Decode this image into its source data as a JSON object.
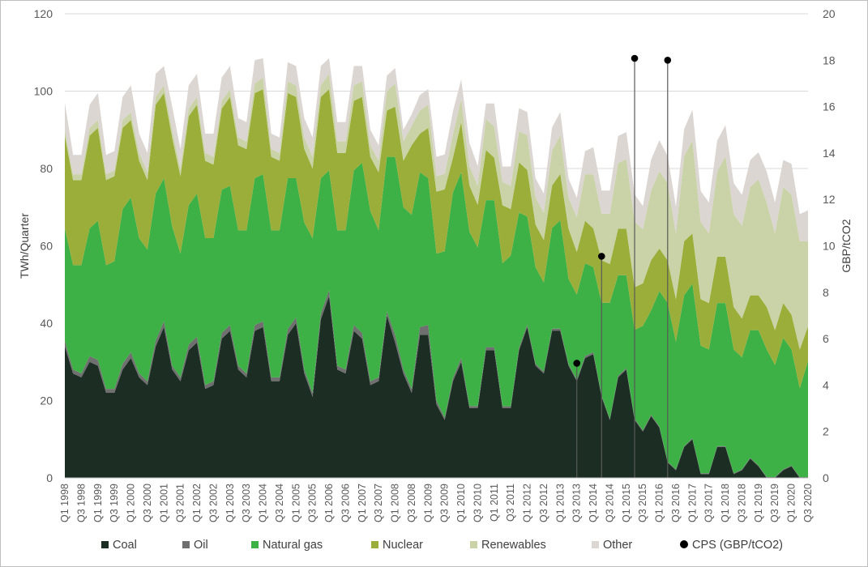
{
  "chart_data": {
    "type": "area",
    "stacked": true,
    "title": "",
    "xlabel": "",
    "ylabel": "TWh/Quarter",
    "y2label": "GBP/tCO2",
    "ylim": [
      0,
      120
    ],
    "y2lim": [
      0,
      20
    ],
    "yticks": [
      0,
      20,
      40,
      60,
      80,
      100,
      120
    ],
    "y2ticks": [
      0,
      2,
      4,
      6,
      8,
      10,
      12,
      14,
      16,
      18,
      20
    ],
    "legend_position": "bottom",
    "colors": {
      "Coal": "#1c2e24",
      "Oil": "#6f6f6f",
      "Natural gas": "#3db046",
      "Nuclear": "#9cae3a",
      "Renewables": "#c9d3a7",
      "Other": "#dcd6d2",
      "CPS (GBP/tCO2)": "#000000"
    },
    "x": [
      "Q1 1998",
      "Q2 1998",
      "Q3 1998",
      "Q4 1998",
      "Q1 1999",
      "Q2 1999",
      "Q3 1999",
      "Q4 1999",
      "Q1 2000",
      "Q2 2000",
      "Q3 2000",
      "Q4 2000",
      "Q1 2001",
      "Q2 2001",
      "Q3 2001",
      "Q4 2001",
      "Q1 2002",
      "Q2 2002",
      "Q3 2002",
      "Q4 2002",
      "Q1 2003",
      "Q2 2003",
      "Q3 2003",
      "Q4 2003",
      "Q1 2004",
      "Q2 2004",
      "Q3 2004",
      "Q4 2004",
      "Q1 2005",
      "Q2 2005",
      "Q3 2005",
      "Q4 2005",
      "Q1 2006",
      "Q2 2006",
      "Q3 2006",
      "Q4 2006",
      "Q1 2007",
      "Q2 2007",
      "Q3 2007",
      "Q4 2007",
      "Q1 2008",
      "Q2 2008",
      "Q3 2008",
      "Q4 2008",
      "Q1 2009",
      "Q2 2009",
      "Q3 2009",
      "Q4 2009",
      "Q1 2010",
      "Q2 2010",
      "Q3 2010",
      "Q4 2010",
      "Q1 2011",
      "Q2 2011",
      "Q3 2011",
      "Q4 2011",
      "Q1 2012",
      "Q2 2012",
      "Q3 2012",
      "Q4 2012",
      "Q1 2013",
      "Q2 2013",
      "Q3 2013",
      "Q4 2013",
      "Q1 2014",
      "Q2 2014",
      "Q3 2014",
      "Q4 2014",
      "Q1 2015",
      "Q2 2015",
      "Q3 2015",
      "Q4 2015",
      "Q1 2016",
      "Q2 2016",
      "Q3 2016",
      "Q4 2016",
      "Q1 2017",
      "Q2 2017",
      "Q3 2017",
      "Q4 2017",
      "Q1 2018",
      "Q2 2018",
      "Q3 2018",
      "Q4 2018",
      "Q1 2019",
      "Q2 2019",
      "Q3 2019",
      "Q4 2019",
      "Q1 2020",
      "Q2 2020",
      "Q3 2020"
    ],
    "xtick_labels": [
      "Q1 1998",
      "Q3 1998",
      "Q1 1999",
      "Q3 1999",
      "Q1 2000",
      "Q3 2000",
      "Q1 2001",
      "Q3 2001",
      "Q1 2002",
      "Q3 2002",
      "Q1 2003",
      "Q3 2003",
      "Q1 2004",
      "Q3 2004",
      "Q1 2005",
      "Q3 2005",
      "Q1 2006",
      "Q3 2006",
      "Q1 2007",
      "Q3 2007",
      "Q1 2008",
      "Q3 2008",
      "Q1 2009",
      "Q3 2009",
      "Q1 2010",
      "Q3 2010",
      "Q1 2011",
      "Q3 2011",
      "Q1 2012",
      "Q3 2012",
      "Q1 2013",
      "Q3 2013",
      "Q1 2014",
      "Q3 2014",
      "Q1 2015",
      "Q3 2015",
      "Q1 2016",
      "Q3 2016",
      "Q1 2017",
      "Q3 2017",
      "Q1 2018",
      "Q3 2018",
      "Q1 2019",
      "Q3 2019",
      "Q1 2020",
      "Q3 2020"
    ],
    "series": [
      {
        "name": "Coal",
        "values": [
          34,
          27,
          26,
          30,
          29,
          22,
          22,
          28,
          31,
          26,
          24,
          34,
          39,
          28,
          25,
          33,
          35,
          23,
          24,
          36,
          38,
          28,
          26,
          38,
          39,
          25,
          25,
          37,
          40,
          27,
          21,
          41,
          47,
          28,
          27,
          38,
          36,
          24,
          25,
          42,
          35,
          27,
          22,
          37,
          37,
          19,
          15,
          25,
          30,
          18,
          18,
          33,
          33,
          18,
          18,
          33,
          39,
          29,
          27,
          38,
          38,
          29,
          25,
          31,
          32,
          21,
          15,
          26,
          28,
          15,
          12,
          16,
          13,
          4,
          2,
          8,
          10,
          1,
          1,
          8,
          8,
          1,
          2,
          5,
          3,
          0,
          0,
          2,
          3,
          0,
          0
        ]
      },
      {
        "name": "Oil",
        "values": [
          1.5,
          1,
          1,
          1.5,
          1.5,
          1,
          1,
          1.5,
          1.5,
          1,
          1,
          1.5,
          1.5,
          1,
          1,
          1.5,
          1.5,
          1,
          1,
          1.5,
          1.5,
          1,
          1,
          1.5,
          1.5,
          1,
          1,
          1.5,
          1.5,
          1,
          1,
          1.5,
          1.5,
          1,
          1,
          1.5,
          1.5,
          1,
          1,
          1,
          2,
          1,
          1,
          2,
          2.5,
          1,
          0.6,
          0.8,
          1,
          0.6,
          0.6,
          0.8,
          0.8,
          0.5,
          0.5,
          0.6,
          0.6,
          0.5,
          0.5,
          0.6,
          0.6,
          0.4,
          0.4,
          0.5,
          0.5,
          0.3,
          0.3,
          0.4,
          0.4,
          0.3,
          0.3,
          0.3,
          0.3,
          0.2,
          0.2,
          0.2,
          0.2,
          0.2,
          0.2,
          0.2,
          0.2,
          0.2,
          0.2,
          0.2,
          0.2,
          0.2,
          0.2,
          0.2,
          0.2,
          0.2,
          0.2
        ]
      },
      {
        "name": "Natural gas",
        "values": [
          29,
          27,
          28,
          33,
          36,
          32,
          33,
          40,
          40,
          35,
          34,
          38,
          37,
          36,
          32,
          36,
          37,
          38,
          37,
          37,
          36,
          35,
          37,
          38,
          38,
          38,
          38,
          39,
          36,
          38,
          40,
          35,
          31,
          35,
          36,
          40,
          44,
          44,
          38,
          40,
          46,
          42,
          45,
          40,
          38,
          38,
          43,
          48,
          48,
          45,
          41,
          38,
          38,
          37,
          39,
          35,
          28,
          25,
          23,
          26,
          28,
          22,
          22,
          24,
          22,
          24,
          30,
          26,
          24,
          23,
          27,
          27,
          35,
          41,
          33,
          39,
          40,
          33,
          32,
          37,
          37,
          32,
          29,
          33,
          35,
          33,
          29,
          34,
          30,
          23,
          30
        ]
      },
      {
        "name": "Nuclear",
        "values": [
          24,
          22,
          22,
          24,
          24,
          22,
          22,
          21,
          20,
          20,
          18,
          23,
          22,
          23,
          20,
          23,
          23,
          20,
          19,
          21,
          23,
          22,
          21,
          22,
          22,
          19,
          18,
          22,
          21,
          19,
          18,
          21,
          21,
          20,
          20,
          18,
          17,
          14,
          15,
          12,
          13,
          12,
          18,
          10,
          13,
          16,
          16,
          9,
          13,
          12,
          11,
          13,
          11,
          15,
          12,
          13,
          12,
          11,
          11,
          11,
          12,
          13,
          11,
          11,
          10,
          11,
          10,
          12,
          12,
          11,
          11,
          13,
          11,
          11,
          11,
          14,
          13,
          12,
          12,
          12,
          12,
          11,
          10,
          9,
          9,
          11,
          9,
          9,
          9,
          10,
          9
        ]
      },
      {
        "name": "Renewables",
        "values": [
          1.5,
          1.5,
          1.5,
          2,
          2,
          1.5,
          1.5,
          2,
          2,
          2,
          2,
          2,
          2,
          2,
          2,
          2,
          2,
          2,
          2,
          2,
          2,
          2,
          2,
          2.5,
          3,
          2,
          2,
          3,
          3,
          3,
          3,
          3,
          4,
          3,
          3,
          4,
          4,
          3,
          3,
          5,
          6,
          5,
          5,
          6,
          6,
          4,
          4,
          6,
          6,
          5,
          5,
          8,
          8,
          6,
          6,
          8,
          9,
          7,
          7,
          9,
          10,
          8,
          9,
          12,
          14,
          12,
          13,
          17,
          18,
          17,
          14,
          18,
          20,
          20,
          17,
          22,
          24,
          20,
          18,
          22,
          26,
          24,
          24,
          28,
          30,
          27,
          25,
          30,
          31,
          28,
          22
        ]
      },
      {
        "name": "Other",
        "values": [
          7,
          5,
          5,
          6,
          7,
          5,
          5,
          6,
          7,
          5,
          5,
          6,
          5,
          6,
          5,
          6,
          6,
          5,
          6,
          6,
          6,
          5,
          5,
          6,
          5,
          4,
          4,
          5,
          5,
          5,
          5,
          5,
          4,
          5,
          5,
          5,
          4,
          4,
          4,
          4,
          4,
          3,
          3,
          4,
          4,
          5,
          5,
          6,
          5,
          6,
          5,
          4,
          6,
          4,
          5,
          6,
          6,
          5,
          5,
          6,
          6,
          5,
          5,
          6,
          7,
          6,
          6,
          7,
          7,
          7,
          6,
          8,
          8,
          7,
          7,
          7,
          8,
          8,
          8,
          8,
          8,
          8,
          8,
          7,
          7,
          8,
          8,
          7,
          8,
          7,
          8
        ]
      },
      {
        "name": "CPS (GBP/tCO2)",
        "axis": "right",
        "type": "lollipop",
        "points": [
          {
            "x": "Q3 2013",
            "value": 4.94
          },
          {
            "x": "Q2 2014",
            "value": 9.55
          },
          {
            "x": "Q2 2015",
            "value": 18.08
          },
          {
            "x": "Q2 2016",
            "value": 18.0
          }
        ]
      }
    ]
  }
}
